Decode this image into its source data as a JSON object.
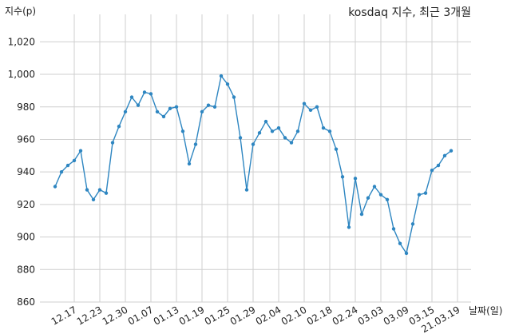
{
  "chart_data": {
    "type": "line",
    "title": "kosdaq 지수, 최근 3개월",
    "ylabel": "지수(p)",
    "xlabel": "날짜(일)",
    "ylim": [
      860,
      1030
    ],
    "yticks": [
      "860",
      "880",
      "900",
      "920",
      "940",
      "960",
      "980",
      "1,000",
      "1,020"
    ],
    "ytick_values": [
      860,
      880,
      900,
      920,
      940,
      960,
      980,
      1000,
      1020
    ],
    "xtick_labels": [
      "12.17",
      "12.23",
      "12.30",
      "01.07",
      "01.13",
      "01.19",
      "01.25",
      "01.29",
      "02.04",
      "02.10",
      "02.18",
      "02.24",
      "03.03",
      "03.09",
      "03.15",
      "21.03.19"
    ],
    "xtick_index": [
      3,
      7,
      11,
      15,
      19,
      23,
      27,
      31,
      35,
      39,
      43,
      47,
      51,
      55,
      59,
      63
    ],
    "grid": true,
    "line_color": "#2e86c1",
    "values": [
      931,
      940,
      944,
      947,
      953,
      929,
      923,
      929,
      927,
      958,
      968,
      977,
      986,
      981,
      989,
      988,
      977,
      974,
      979,
      980,
      965,
      945,
      957,
      977,
      981,
      980,
      999,
      994,
      986,
      961,
      929,
      957,
      964,
      971,
      965,
      967,
      961,
      958,
      965,
      982,
      978,
      980,
      967,
      965,
      954,
      937,
      906,
      936,
      914,
      924,
      931,
      926,
      923,
      905,
      896,
      890,
      908,
      926,
      927,
      941,
      944,
      950,
      953
    ]
  }
}
